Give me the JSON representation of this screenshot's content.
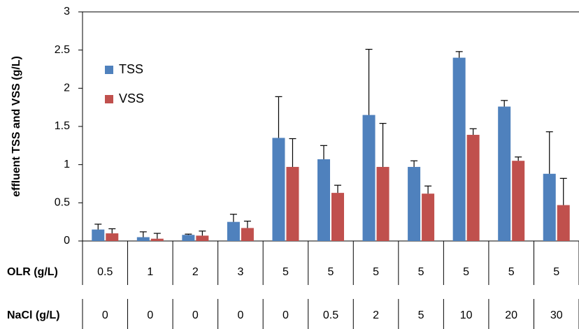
{
  "chart_data": {
    "type": "bar",
    "y_label": "effluent TSS and VSS (g/L)",
    "categories": [
      "0.5",
      "1",
      "2",
      "3",
      "5",
      "5",
      "5",
      "5",
      "5",
      "5",
      "5"
    ],
    "x_rows": [
      {
        "label": "OLR (g/L)",
        "values": [
          "0.5",
          "1",
          "2",
          "3",
          "5",
          "5",
          "5",
          "5",
          "5",
          "5",
          "5"
        ]
      },
      {
        "label": "NaCl  (g/L)",
        "values": [
          "0",
          "0",
          "0",
          "0",
          "0",
          "0.5",
          "2",
          "5",
          "10",
          "20",
          "30"
        ]
      }
    ],
    "series": [
      {
        "name": "TSS",
        "color": "#4f81bd",
        "values": [
          0.15,
          0.05,
          0.08,
          0.25,
          1.35,
          1.07,
          1.65,
          0.97,
          2.4,
          1.76,
          0.88
        ],
        "errors": [
          0.07,
          0.07,
          0.01,
          0.1,
          0.54,
          0.18,
          0.86,
          0.08,
          0.08,
          0.08,
          0.55
        ]
      },
      {
        "name": "VSS",
        "color": "#c0504d",
        "values": [
          0.1,
          0.03,
          0.07,
          0.17,
          0.97,
          0.63,
          0.97,
          0.62,
          1.39,
          1.05,
          0.47
        ],
        "errors": [
          0.06,
          0.07,
          0.06,
          0.09,
          0.37,
          0.1,
          0.57,
          0.1,
          0.08,
          0.05,
          0.35
        ]
      }
    ],
    "ylim": [
      0,
      3
    ],
    "yticks": [
      0,
      0.5,
      1,
      1.5,
      2,
      2.5,
      3
    ],
    "grid": false,
    "legend": "top-left"
  }
}
